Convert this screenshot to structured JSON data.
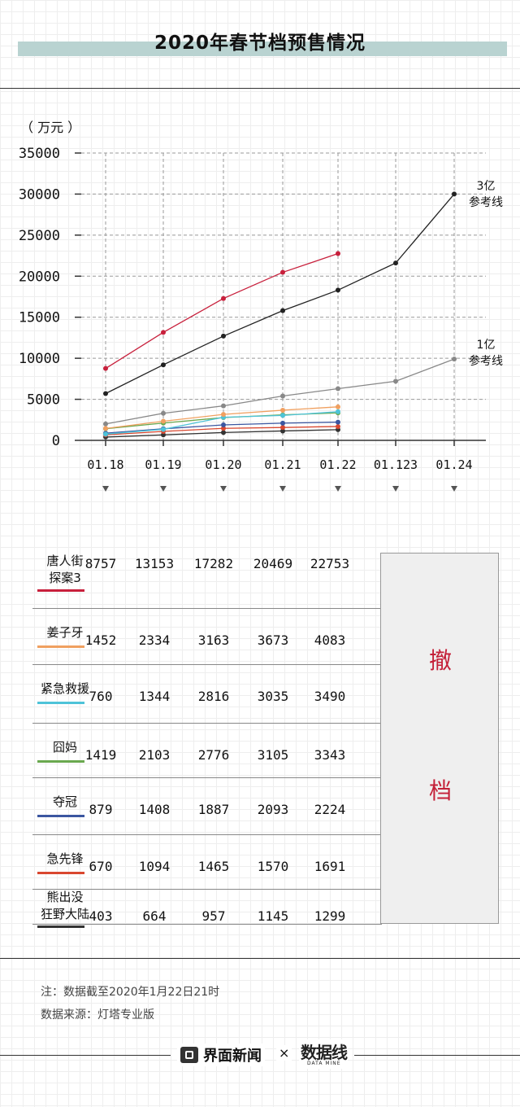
{
  "title": "2020年春节档预售情况",
  "unit_label": "（ 万元 ）",
  "chart_data": {
    "type": "line",
    "title": "2020年春节档预售情况",
    "ylabel": "（ 万元 ）",
    "ylim": [
      0,
      35000
    ],
    "y_ticks": [
      0,
      5000,
      10000,
      15000,
      20000,
      25000,
      30000,
      35000
    ],
    "x_dates": [
      "01.18",
      "01.19",
      "01.20",
      "01.21",
      "01.22",
      "01.123",
      "01.24"
    ],
    "grid": true,
    "series": [
      {
        "name": "唐人街探案3",
        "color": "#c8203c",
        "values": [
          8757,
          13153,
          17282,
          20469,
          22753
        ]
      },
      {
        "name": "姜子牙",
        "color": "#f0a060",
        "values": [
          1452,
          2334,
          3163,
          3673,
          4083
        ]
      },
      {
        "name": "紧急救援",
        "color": "#4ec3d8",
        "values": [
          760,
          1344,
          2816,
          3035,
          3490
        ]
      },
      {
        "name": "囧妈",
        "color": "#6aa84f",
        "values": [
          1419,
          2103,
          2776,
          3105,
          3343
        ]
      },
      {
        "name": "夺冠",
        "color": "#3b56a0",
        "values": [
          879,
          1408,
          1887,
          2093,
          2224
        ]
      },
      {
        "name": "急先锋",
        "color": "#d9472f",
        "values": [
          670,
          1094,
          1465,
          1570,
          1691
        ]
      },
      {
        "name": "熊出没狂野大陆",
        "color": "#333333",
        "values": [
          403,
          664,
          957,
          1145,
          1299
        ]
      }
    ],
    "reference_lines": [
      {
        "label": "3亿\n参考线",
        "color": "#222222",
        "values": [
          5700,
          9200,
          12700,
          15800,
          18300,
          21600,
          30000
        ]
      },
      {
        "label": "1亿\n参考线",
        "color": "#888888",
        "values": [
          2000,
          3300,
          4200,
          5400,
          6300,
          7200,
          9900
        ]
      }
    ]
  },
  "table": {
    "rows": [
      {
        "name": "唐人街\n探案3",
        "color": "#c8203c",
        "values": [
          "8757",
          "13153",
          "17282",
          "20469",
          "22753"
        ]
      },
      {
        "name": "姜子牙",
        "color": "#f0a060",
        "values": [
          "1452",
          "2334",
          "3163",
          "3673",
          "4083"
        ]
      },
      {
        "name": "紧急救援",
        "color": "#4ec3d8",
        "values": [
          "760",
          "1344",
          "2816",
          "3035",
          "3490"
        ]
      },
      {
        "name": "囧妈",
        "color": "#6aa84f",
        "values": [
          "1419",
          "2103",
          "2776",
          "3105",
          "3343"
        ]
      },
      {
        "name": "夺冠",
        "color": "#3b56a0",
        "values": [
          "879",
          "1408",
          "1887",
          "2093",
          "2224"
        ]
      },
      {
        "name": "急先锋",
        "color": "#d9472f",
        "values": [
          "670",
          "1094",
          "1465",
          "1570",
          "1691"
        ]
      },
      {
        "name": "熊出没\n狂野大陆",
        "color": "#333333",
        "values": [
          "403",
          "664",
          "957",
          "1145",
          "1299"
        ]
      }
    ],
    "withdrawn_chars": [
      "撤",
      "档"
    ]
  },
  "notes": {
    "note": "注：数据截至2020年1月22日21时",
    "source": "数据来源：灯塔专业版"
  },
  "footer": {
    "brand": "界面新闻",
    "times": "×",
    "logo": "数据线",
    "logo_sub": "DATA MINE"
  }
}
